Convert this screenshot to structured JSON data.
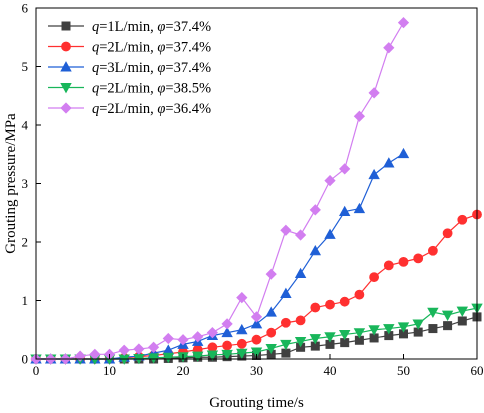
{
  "chart_data": {
    "type": "line",
    "xlabel": "Grouting time/s",
    "ylabel": "Grouting pressure/MPa",
    "xlim": [
      0,
      60
    ],
    "ylim": [
      0,
      6
    ],
    "xticks": [
      0,
      10,
      20,
      30,
      40,
      50,
      60
    ],
    "yticks": [
      0,
      1,
      2,
      3,
      4,
      5,
      6
    ],
    "grid": false,
    "legend_position": "top-left",
    "series": [
      {
        "name": "q=1L/min, φ=37.4%",
        "label_parts": [
          "q",
          "=1L/min, ",
          "φ",
          "=37.4%"
        ],
        "color": "#404040",
        "marker": "square",
        "x": [
          0,
          2,
          4,
          6,
          8,
          10,
          12,
          14,
          16,
          18,
          20,
          22,
          24,
          26,
          28,
          30,
          32,
          34,
          36,
          38,
          40,
          42,
          44,
          46,
          48,
          50,
          52,
          54,
          56,
          58,
          60
        ],
        "y": [
          0,
          0,
          0,
          0,
          0,
          0,
          0,
          0,
          0,
          0.01,
          0.02,
          0.03,
          0.03,
          0.04,
          0.05,
          0.06,
          0.08,
          0.1,
          0.2,
          0.22,
          0.25,
          0.28,
          0.32,
          0.36,
          0.4,
          0.43,
          0.46,
          0.52,
          0.57,
          0.65,
          0.72
        ]
      },
      {
        "name": "q=2L/min, φ=37.4%",
        "label_parts": [
          "q",
          "=2L/min, ",
          "φ",
          "=37.4%"
        ],
        "color": "#ff3030",
        "marker": "circle",
        "x": [
          0,
          2,
          4,
          6,
          8,
          10,
          12,
          14,
          16,
          18,
          20,
          22,
          24,
          26,
          28,
          30,
          32,
          34,
          36,
          38,
          40,
          42,
          44,
          46,
          48,
          50,
          52,
          54,
          56,
          58,
          60
        ],
        "y": [
          0,
          0,
          0,
          0,
          0,
          0,
          0.02,
          0.04,
          0.06,
          0.09,
          0.12,
          0.16,
          0.2,
          0.23,
          0.26,
          0.33,
          0.45,
          0.62,
          0.66,
          0.88,
          0.93,
          0.98,
          1.1,
          1.4,
          1.6,
          1.66,
          1.72,
          1.85,
          2.15,
          2.38,
          2.47
        ]
      },
      {
        "name": "q=3L/min, φ=37.4%",
        "label_parts": [
          "q",
          "=3L/min, ",
          "φ",
          "=37.4%"
        ],
        "color": "#1f5fd6",
        "marker": "triangle-up",
        "x": [
          0,
          2,
          4,
          6,
          8,
          10,
          12,
          14,
          16,
          18,
          20,
          22,
          24,
          26,
          28,
          30,
          32,
          34,
          36,
          38,
          40,
          42,
          44,
          46,
          48,
          50
        ],
        "y": [
          0,
          0,
          0,
          0,
          0,
          0,
          0.03,
          0.05,
          0.1,
          0.15,
          0.25,
          0.3,
          0.4,
          0.45,
          0.5,
          0.6,
          0.8,
          1.12,
          1.46,
          1.85,
          2.13,
          2.52,
          2.57,
          3.15,
          3.35,
          3.51
        ]
      },
      {
        "name": "q=2L/min, φ=38.5%",
        "label_parts": [
          "q",
          "=2L/min, ",
          "φ",
          "=38.5%"
        ],
        "color": "#18b65a",
        "marker": "triangle-down",
        "x": [
          0,
          2,
          4,
          6,
          8,
          10,
          12,
          14,
          16,
          18,
          20,
          22,
          24,
          26,
          28,
          30,
          32,
          34,
          36,
          38,
          40,
          42,
          44,
          46,
          48,
          50,
          52,
          54,
          56,
          58,
          60
        ],
        "y": [
          0,
          0,
          0,
          0,
          0,
          0,
          0,
          0.01,
          0.02,
          0.03,
          0.04,
          0.05,
          0.07,
          0.08,
          0.1,
          0.12,
          0.18,
          0.25,
          0.3,
          0.35,
          0.38,
          0.42,
          0.45,
          0.5,
          0.52,
          0.55,
          0.6,
          0.8,
          0.75,
          0.82,
          0.87
        ]
      },
      {
        "name": "q=2L/min, φ=36.4%",
        "label_parts": [
          "q",
          "=2L/min, ",
          "φ",
          "=36.4%"
        ],
        "color": "#d27ef0",
        "marker": "diamond",
        "x": [
          0,
          2,
          4,
          6,
          8,
          10,
          12,
          14,
          16,
          18,
          20,
          22,
          24,
          26,
          28,
          30,
          32,
          34,
          36,
          38,
          40,
          42,
          44,
          46,
          48,
          50
        ],
        "y": [
          0,
          0,
          0,
          0.05,
          0.08,
          0.08,
          0.15,
          0.17,
          0.2,
          0.35,
          0.33,
          0.38,
          0.45,
          0.6,
          1.05,
          0.72,
          1.45,
          2.2,
          2.12,
          2.55,
          3.05,
          3.25,
          4.15,
          4.55,
          5.32,
          5.75
        ]
      }
    ]
  }
}
